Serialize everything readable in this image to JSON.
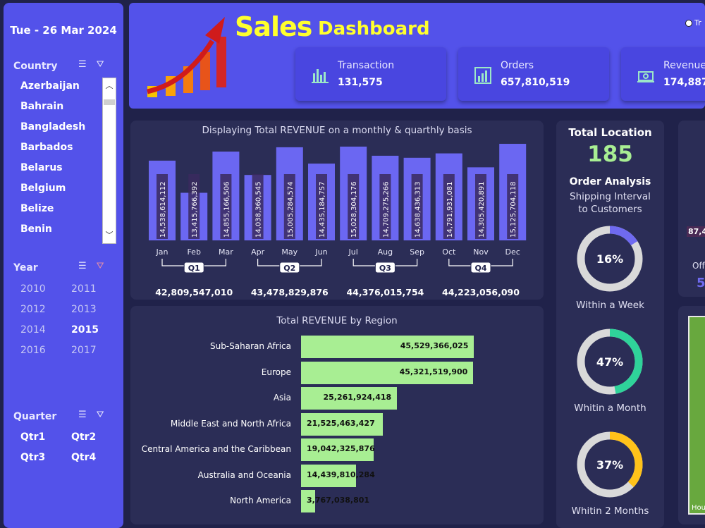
{
  "sidebar": {
    "date": "Tue - 26 Mar 2024",
    "country": {
      "title": "Country",
      "items": [
        "Azerbaijan",
        "Bahrain",
        "Bangladesh",
        "Barbados",
        "Belarus",
        "Belgium",
        "Belize",
        "Benin"
      ]
    },
    "year": {
      "title": "Year",
      "items": [
        "2010",
        "2011",
        "2012",
        "2013",
        "2014",
        "2015",
        "2016",
        "2017"
      ],
      "selected": "2015"
    },
    "quarter": {
      "title": "Quarter",
      "items": [
        "Qtr1",
        "Qtr2",
        "Qtr3",
        "Qtr4"
      ]
    }
  },
  "header": {
    "title": "Sales",
    "title_suffix": "Dashboard",
    "radio_label": "Tr",
    "kpis": [
      {
        "label": "Transaction",
        "value": "131,575",
        "icon": "bar-chart-icon"
      },
      {
        "label": "Orders",
        "value": "657,810,519",
        "icon": "column-chart-icon"
      },
      {
        "label": "Revenue",
        "value": "174,887",
        "icon": "money-icon"
      }
    ]
  },
  "monthly": {
    "title": "Displaying Total REVENUE on a monthly & quarthly basis",
    "quarters": [
      {
        "label": "Q1",
        "total": "42,809,547,010"
      },
      {
        "label": "Q2",
        "total": "43,478,829,876"
      },
      {
        "label": "Q3",
        "total": "44,376,015,754"
      },
      {
        "label": "Q4",
        "total": "44,223,056,090"
      }
    ]
  },
  "region": {
    "title": "Total REVENUE by Region"
  },
  "location": {
    "title": "Total Location",
    "count": "185",
    "analysis_title": "Order Analysis",
    "analysis_sub_1": "Shipping Interval",
    "analysis_sub_2": "to Customers",
    "donuts": [
      {
        "pct": 16,
        "label": "16%",
        "caption": "Within a Week",
        "color": "#6f6af0"
      },
      {
        "pct": 47,
        "label": "47%",
        "caption": "Whitin a Month",
        "color": "#2fd39a"
      },
      {
        "pct": 37,
        "label": "37%",
        "caption": "Whitin 2 Months",
        "color": "#ffc21a"
      }
    ]
  },
  "right_partial": {
    "value_1": "87,4",
    "label_2": "Off",
    "value_3": "5",
    "bottom_label": "Hou"
  },
  "chart_data": [
    {
      "type": "bar",
      "title": "Displaying Total REVENUE on a monthly & quarthly basis",
      "categories": [
        "Jan",
        "Feb",
        "Mar",
        "Apr",
        "May",
        "Jun",
        "Jul",
        "Aug",
        "Sep",
        "Oct",
        "Nov",
        "Dec"
      ],
      "values": [
        14538614112,
        13415766392,
        14855166506,
        14038360545,
        15005284574,
        14435184757,
        15028304176,
        14709275266,
        14638436313,
        14791931081,
        14305420891,
        15125704118
      ],
      "value_labels": [
        "14,538,614,112",
        "13,415,766,392",
        "14,855,166,506",
        "14,038,360,545",
        "15,005,284,574",
        "14,435,184,757",
        "15,028,304,176",
        "14,709,275,266",
        "14,638,436,313",
        "14,791,931,081",
        "14,305,420,891",
        "15,125,704,118"
      ],
      "color": "#6b67f2"
    },
    {
      "type": "bar",
      "orientation": "horizontal",
      "title": "Total REVENUE by Region",
      "categories": [
        "Sub-Saharan Africa",
        "Europe",
        "Asia",
        "Middle East and North Africa",
        "Central America and the Caribbean",
        "Australia and Oceania",
        "North America"
      ],
      "values": [
        45529366025,
        45321519900,
        25261924418,
        21525463427,
        19042325876,
        14439810284,
        3767038801
      ],
      "value_labels": [
        "45,529,366,025",
        "45,321,519,900",
        "25,261,924,418",
        "21,525,463,427",
        "19,042,325,876",
        "14,439,810,284",
        "3,767,038,801"
      ],
      "color": "#a8ee93"
    }
  ]
}
